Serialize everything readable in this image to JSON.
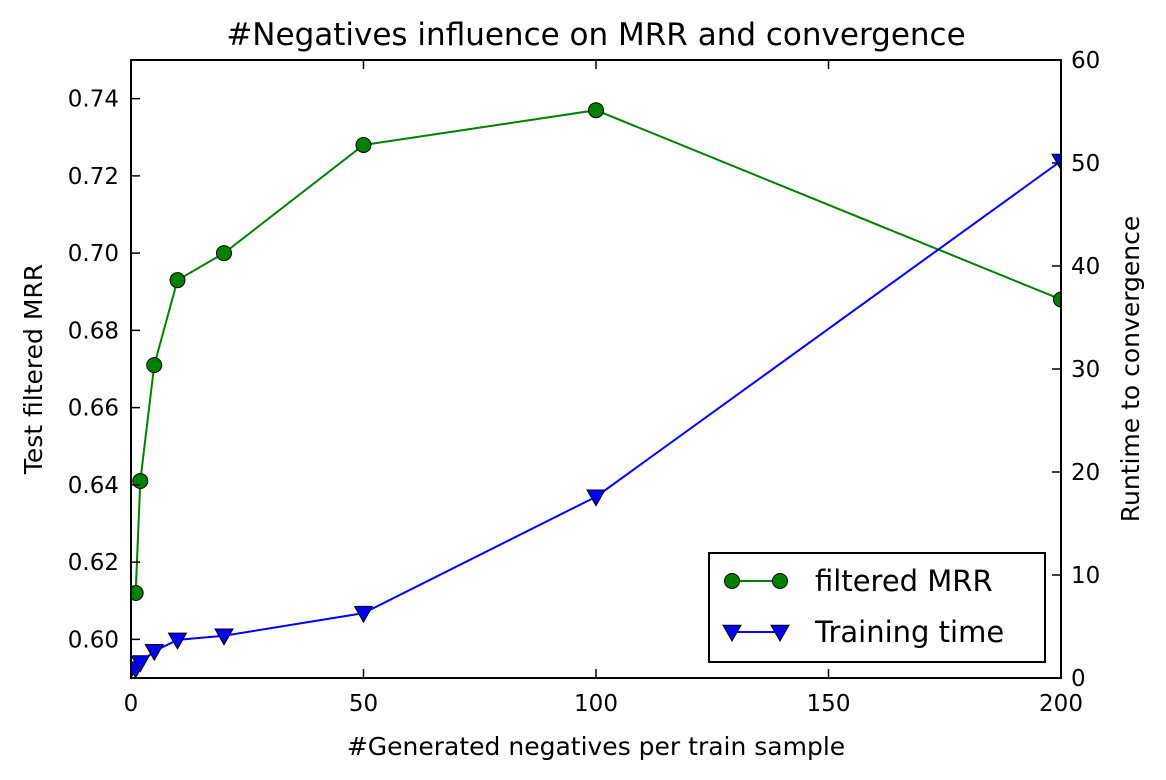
{
  "chart_data": {
    "type": "line",
    "title": "#Negatives influence on MRR and convergence",
    "xlabel": "#Generated negatives per train sample",
    "ylabel": "Test filtered MRR",
    "y2label": "Runtime to convergence",
    "xlim": [
      0,
      200
    ],
    "ylim": [
      0.59,
      0.75
    ],
    "y2lim": [
      0,
      60
    ],
    "xticks": [
      0,
      50,
      100,
      150,
      200
    ],
    "yticks": [
      0.6,
      0.62,
      0.64,
      0.66,
      0.68,
      0.7,
      0.72,
      0.74
    ],
    "y2ticks": [
      0,
      10,
      20,
      30,
      40,
      50,
      60
    ],
    "grid": false,
    "legend_position": "bottom-right",
    "series": [
      {
        "name": "filtered MRR",
        "axis": "left",
        "color": "#008000",
        "marker": "circle",
        "x": [
          1,
          2,
          5,
          10,
          20,
          50,
          100,
          200
        ],
        "y": [
          0.612,
          0.641,
          0.671,
          0.693,
          0.7,
          0.728,
          0.737,
          0.688
        ]
      },
      {
        "name": "Training time",
        "axis": "right",
        "color": "#0000ff",
        "marker": "triangle-down",
        "x": [
          0,
          1,
          2,
          5,
          10,
          20,
          50,
          100,
          200
        ],
        "y": [
          0.9,
          0.9,
          1.5,
          2.6,
          3.7,
          4.1,
          6.3,
          17.6,
          50.2
        ]
      }
    ]
  }
}
